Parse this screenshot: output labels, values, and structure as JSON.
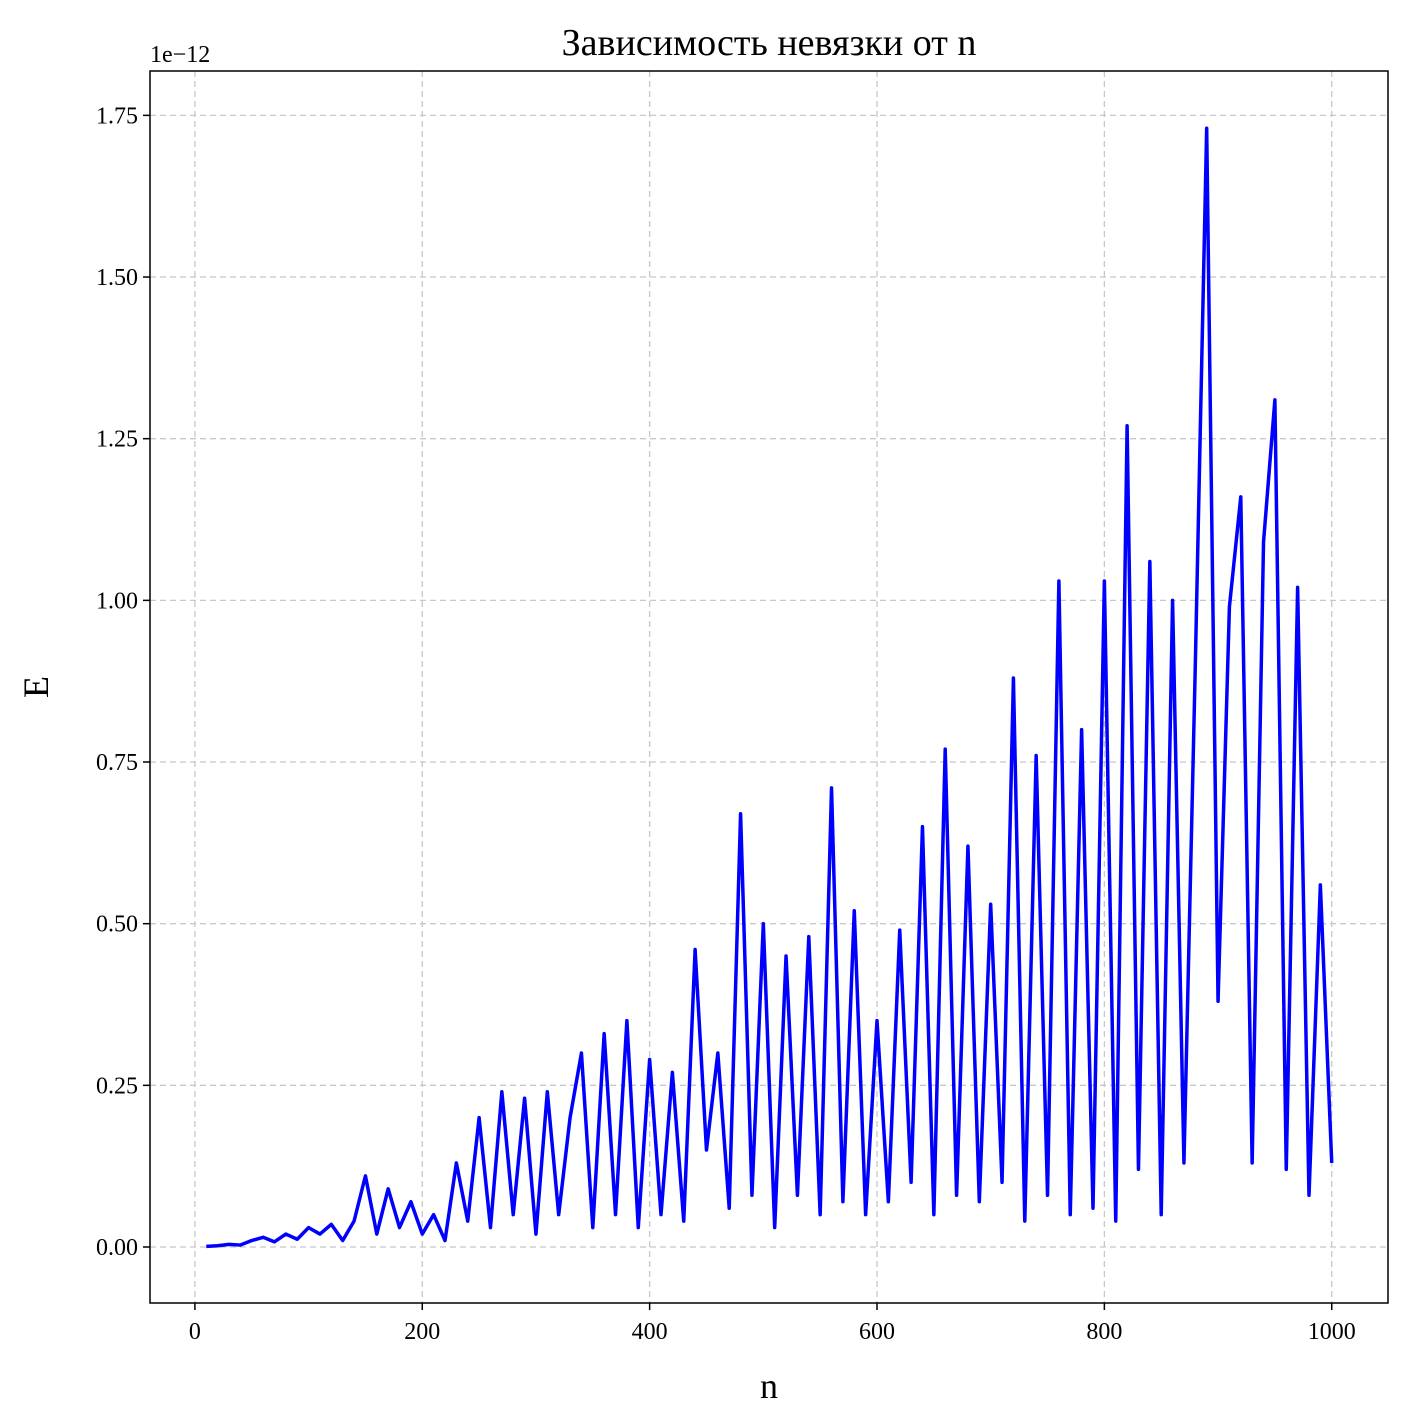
{
  "chart_data": {
    "type": "line",
    "title": "Зависимость невязки от n",
    "x_label": "n",
    "y_label": "E",
    "y_offset_label": "1e−12",
    "x": [
      10,
      20,
      30,
      40,
      50,
      60,
      70,
      80,
      90,
      100,
      110,
      120,
      130,
      140,
      150,
      160,
      170,
      180,
      190,
      200,
      210,
      220,
      230,
      240,
      250,
      260,
      270,
      280,
      290,
      300,
      310,
      320,
      330,
      340,
      350,
      360,
      370,
      380,
      390,
      400,
      410,
      420,
      430,
      440,
      450,
      460,
      470,
      480,
      490,
      500,
      510,
      520,
      530,
      540,
      550,
      560,
      570,
      580,
      590,
      600,
      610,
      620,
      630,
      640,
      650,
      660,
      670,
      680,
      690,
      700,
      710,
      720,
      730,
      740,
      750,
      760,
      770,
      780,
      790,
      800,
      810,
      820,
      830,
      840,
      850,
      860,
      870,
      880,
      890,
      900,
      910,
      920,
      930,
      940,
      950,
      960,
      970,
      980,
      990,
      1000
    ],
    "series": [
      {
        "name": "E",
        "color": "#0000ff",
        "values": [
          0.001,
          0.002,
          0.004,
          0.003,
          0.01,
          0.015,
          0.008,
          0.02,
          0.012,
          0.03,
          0.02,
          0.035,
          0.01,
          0.04,
          0.11,
          0.02,
          0.09,
          0.03,
          0.07,
          0.02,
          0.05,
          0.01,
          0.13,
          0.04,
          0.2,
          0.03,
          0.24,
          0.05,
          0.23,
          0.02,
          0.24,
          0.05,
          0.2,
          0.3,
          0.03,
          0.33,
          0.05,
          0.35,
          0.03,
          0.29,
          0.05,
          0.27,
          0.04,
          0.46,
          0.15,
          0.3,
          0.06,
          0.67,
          0.08,
          0.5,
          0.03,
          0.45,
          0.08,
          0.48,
          0.05,
          0.71,
          0.07,
          0.52,
          0.05,
          0.35,
          0.07,
          0.49,
          0.1,
          0.65,
          0.05,
          0.77,
          0.08,
          0.62,
          0.07,
          0.53,
          0.1,
          0.88,
          0.04,
          0.76,
          0.08,
          1.03,
          0.05,
          0.8,
          0.06,
          1.03,
          0.04,
          1.27,
          0.12,
          1.06,
          0.05,
          1.0,
          0.13,
          0.9,
          1.73,
          0.38,
          0.99,
          1.16,
          0.13,
          1.09,
          1.31,
          0.12,
          1.02,
          0.08,
          0.56,
          0.13
        ]
      }
    ],
    "xlim": [
      -39.5,
      1049.5
    ],
    "ylim": [
      -0.0866,
      1.8186
    ],
    "xticks": [
      0,
      200,
      400,
      600,
      800,
      1000
    ],
    "yticks": [
      {
        "value": 0,
        "label": "0.00"
      },
      {
        "value": 0.25,
        "label": "0.25"
      },
      {
        "value": 0.5,
        "label": "0.50"
      },
      {
        "value": 0.75,
        "label": "0.75"
      },
      {
        "value": 1,
        "label": "1.00"
      },
      {
        "value": 1.25,
        "label": "1.25"
      },
      {
        "value": 1.5,
        "label": "1.50"
      },
      {
        "value": 1.75,
        "label": "1.75"
      }
    ],
    "grid": true
  }
}
